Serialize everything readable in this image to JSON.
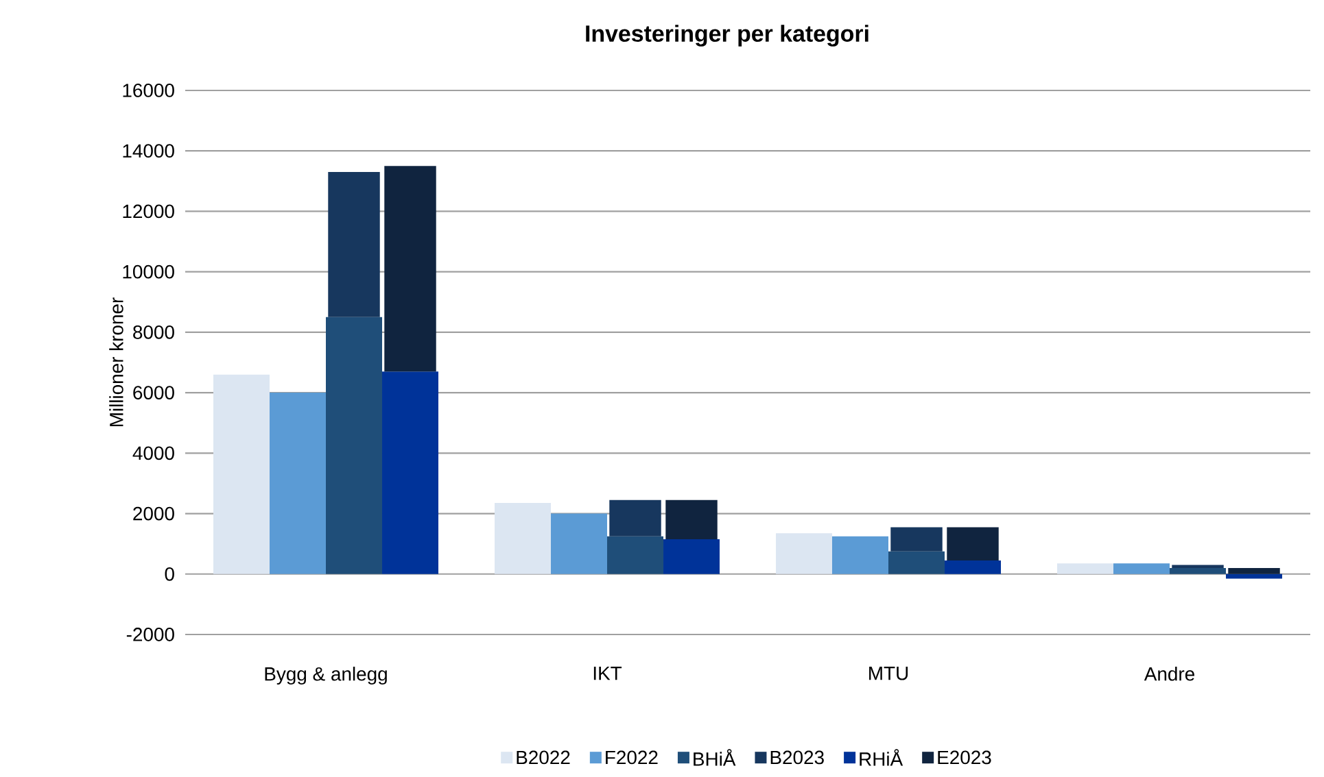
{
  "chart_data": {
    "type": "bar",
    "title": "Investeringer per kategori",
    "ylabel": "Millioner kroner",
    "categories": [
      "Bygg & anlegg",
      "IKT",
      "MTU",
      "Andre"
    ],
    "series": [
      {
        "name": "B2022",
        "color": "#dce6f2",
        "values": [
          6600,
          2350,
          1350,
          350
        ]
      },
      {
        "name": "F2022",
        "color": "#5b9bd5",
        "values": [
          6000,
          2000,
          1250,
          350
        ]
      },
      {
        "name": "BHiÅ",
        "color": "#1f4e79",
        "values": [
          8500,
          1250,
          750,
          200
        ]
      },
      {
        "name": "B2023",
        "color": "#17375e",
        "base": [
          8500,
          1250,
          750,
          200
        ],
        "values": [
          4800,
          1200,
          800,
          100
        ]
      },
      {
        "name": "RHiÅ",
        "color": "#003399",
        "values": [
          6700,
          1150,
          450,
          -150
        ]
      },
      {
        "name": "E2023",
        "color": "#10243f",
        "base": [
          6700,
          1150,
          450,
          0
        ],
        "values": [
          6800,
          1300,
          1100,
          200
        ]
      }
    ],
    "ylim": [
      -2000,
      16000
    ],
    "yticks": [
      -2000,
      0,
      2000,
      4000,
      6000,
      8000,
      10000,
      12000,
      14000,
      16000
    ],
    "grid": "y",
    "legend": "bottom"
  }
}
